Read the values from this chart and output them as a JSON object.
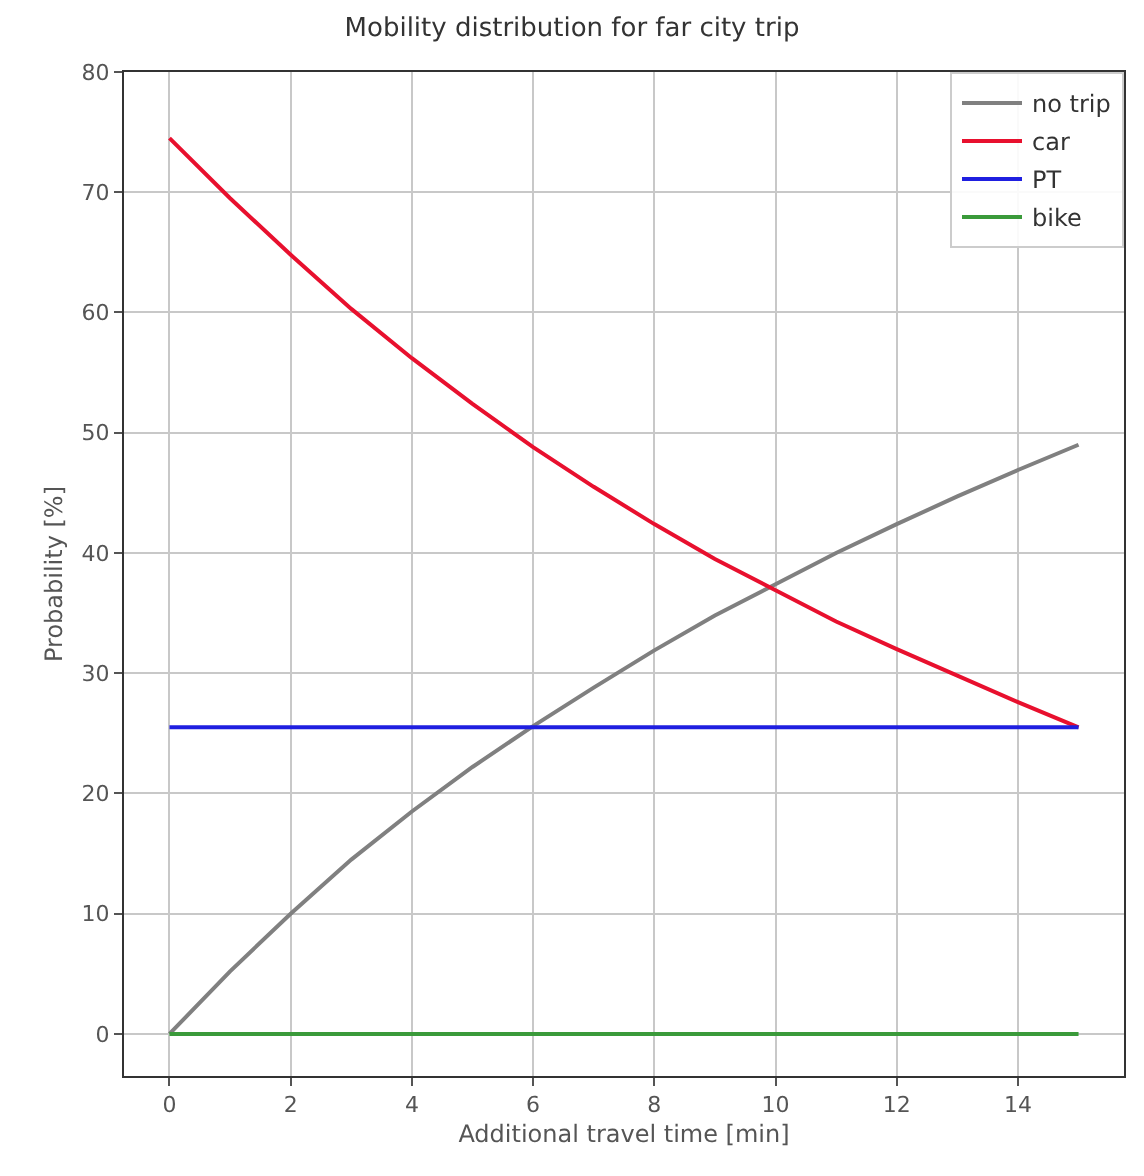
{
  "chart_data": {
    "type": "line",
    "title": "Mobility distribution for far city trip",
    "xlabel": "Additional travel time [min]",
    "ylabel": "Probability [%]",
    "x": [
      0,
      1,
      2,
      3,
      4,
      5,
      6,
      7,
      8,
      9,
      10,
      11,
      12,
      13,
      14,
      15
    ],
    "series": [
      {
        "name": "no trip",
        "color": "#808080",
        "values": [
          0,
          5.2,
          10,
          14.5,
          18.5,
          22.2,
          25.6,
          28.8,
          31.9,
          34.8,
          37.4,
          40,
          42.4,
          44.7,
          46.9,
          49
        ]
      },
      {
        "name": "car",
        "color": "#e8102e",
        "values": [
          74.5,
          69.5,
          64.8,
          60.3,
          56.2,
          52.4,
          48.8,
          45.5,
          42.4,
          39.5,
          36.9,
          34.3,
          32,
          29.8,
          27.6,
          25.5
        ]
      },
      {
        "name": "PT",
        "color": "#1f1fe0",
        "values": [
          25.5,
          25.5,
          25.5,
          25.5,
          25.5,
          25.5,
          25.5,
          25.5,
          25.5,
          25.5,
          25.5,
          25.5,
          25.5,
          25.5,
          25.5,
          25.5
        ]
      },
      {
        "name": "bike",
        "color": "#3a9a3a",
        "values": [
          0,
          0,
          0,
          0,
          0,
          0,
          0,
          0,
          0,
          0,
          0,
          0,
          0,
          0,
          0,
          0
        ]
      }
    ],
    "xlim": [
      -0.75,
      15.75
    ],
    "xticks": [
      0,
      2,
      4,
      6,
      8,
      10,
      12,
      14
    ],
    "ylim": [
      -3.5,
      80
    ],
    "yticks": [
      0,
      10,
      20,
      30,
      40,
      50,
      60,
      70,
      80
    ],
    "grid": true,
    "legend": "top right",
    "marker": "none",
    "line_style": "solid"
  }
}
